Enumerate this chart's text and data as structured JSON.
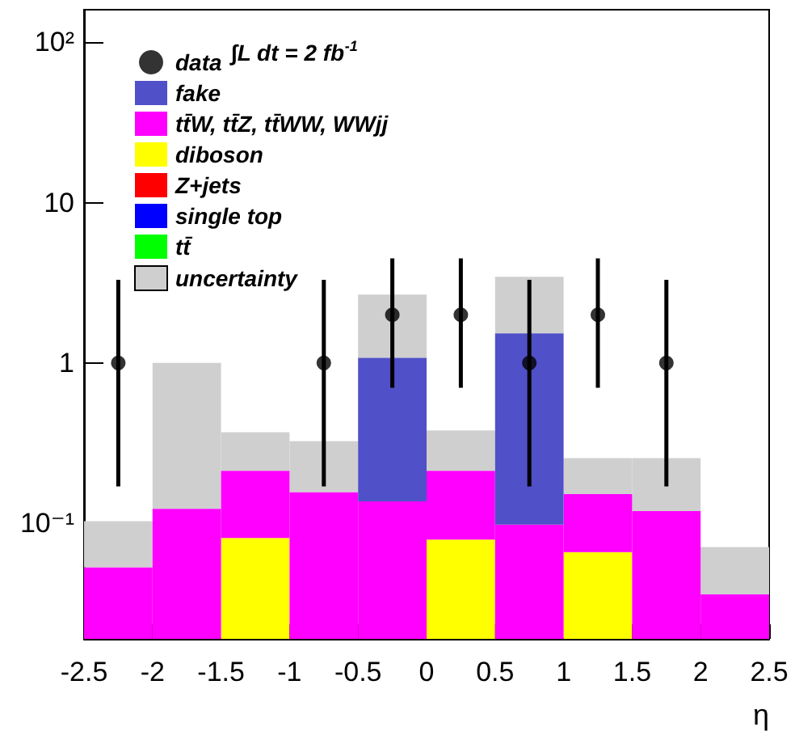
{
  "chart_data": {
    "type": "bar",
    "xlabel": "η",
    "x": [
      -2.25,
      -1.75,
      -1.25,
      -0.75,
      -0.25,
      0.25,
      0.75,
      1.25,
      1.75,
      2.25
    ],
    "stacked": true,
    "log": "y",
    "legend": "top left",
    "marker": "circle",
    "xlim": [
      -2.5,
      2.5
    ],
    "xticks": [
      -2.5,
      -2,
      -1.5,
      -1,
      -0.5,
      0,
      0.5,
      1,
      1.5,
      2,
      2.5
    ],
    "ylim": [
      0.019,
      160
    ],
    "yticks": [
      {
        "value": 0.1,
        "label": "10⁻¹"
      },
      1,
      10,
      {
        "value": 100,
        "label": "10²"
      }
    ],
    "annotations": [
      "∫L dt = 2 fb$^{-1}$"
    ],
    "series": [
      {
        "name": "data",
        "type": "scatter",
        "color": "#000000",
        "x": [
          -2.25,
          -0.75,
          -0.25,
          0.25,
          0.75,
          1.25,
          1.75
        ],
        "values": [
          1,
          1,
          2,
          2,
          1,
          2,
          1
        ],
        "errors": [
          [
            0.17,
            3.3
          ],
          [
            0.17,
            3.3
          ],
          [
            0.7,
            4.5
          ],
          [
            0.7,
            4.5
          ],
          [
            0.17,
            3.3
          ],
          [
            0.7,
            4.5
          ],
          [
            0.17,
            3.3
          ]
        ]
      },
      {
        "name": "tt̄",
        "color": "#00ff00",
        "values": [
          null,
          null,
          null,
          null,
          null,
          null,
          null,
          null,
          null,
          null
        ]
      },
      {
        "name": "single top",
        "color": "#0000ff",
        "values": [
          null,
          null,
          null,
          null,
          null,
          null,
          null,
          null,
          null,
          null
        ]
      },
      {
        "name": "Z+jets",
        "color": "#ff0000",
        "values": [
          null,
          null,
          null,
          null,
          null,
          null,
          null,
          null,
          null,
          null
        ]
      },
      {
        "name": "diboson",
        "color": "#ffff00",
        "values": [
          null,
          null,
          0.081,
          null,
          null,
          0.079,
          null,
          0.066,
          null,
          null
        ]
      },
      {
        "name": "tt̄W, tt̄Z, tt̄WW, WWjj",
        "color": "#ff00ff",
        "values": [
          0.053,
          0.123,
          0.131,
          0.156,
          0.137,
          0.133,
          0.098,
          0.086,
          0.119,
          0.036
        ]
      },
      {
        "name": "fake",
        "color": "#5050c8",
        "values": [
          null,
          null,
          null,
          null,
          0.94,
          null,
          1.43,
          null,
          null,
          null
        ]
      },
      {
        "name": "uncertainty",
        "type": "bar",
        "color": "#cfcfcf",
        "values": [
          0.05,
          0.877,
          0.158,
          0.169,
          1.593,
          0.168,
          1.922,
          0.103,
          0.136,
          0.035
        ]
      }
    ]
  }
}
